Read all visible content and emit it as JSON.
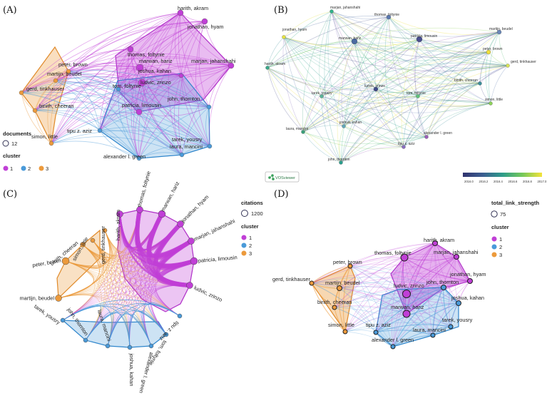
{
  "panels": {
    "a": {
      "label": "(A)",
      "legend": {
        "size_title": "documents",
        "size_value": "12",
        "cluster_title": "cluster",
        "clusters": [
          "1",
          "2",
          "3"
        ]
      }
    },
    "b": {
      "label": "(B)",
      "brand": "VOSviewer",
      "scale_ticks": [
        "2016.0",
        "2016.2",
        "2016.4",
        "2016.6",
        "2016.8",
        "2017.0"
      ]
    },
    "c": {
      "label": "(C)",
      "legend": {
        "size_title": "citations",
        "size_value": "1200",
        "cluster_title": "cluster",
        "clusters": [
          "1",
          "2",
          "3"
        ]
      }
    },
    "d": {
      "label": "(D)",
      "legend": {
        "size_title": "total_link_strength",
        "size_value": "75",
        "cluster_title": "cluster",
        "clusters": [
          "1",
          "2",
          "3"
        ]
      }
    }
  },
  "colors": {
    "cluster1": "#c03fd6",
    "cluster2": "#4a9ad9",
    "cluster3": "#ec9a3c"
  },
  "network": {
    "a": [
      {
        "label": "harith, akram",
        "c": 1
      },
      {
        "label": "jonathan, hyam",
        "c": 1
      },
      {
        "label": "thomas, foltynie",
        "c": 1
      },
      {
        "label": "marwan, hariz",
        "c": 1
      },
      {
        "label": "joshua, kahan",
        "c": 1
      },
      {
        "label": "marjan, jahanshahi",
        "c": 1
      },
      {
        "label": "ludvic, zrinzo",
        "c": 1
      },
      {
        "label": "patricia, limousin",
        "c": 1
      },
      {
        "label": "tom, foltynie",
        "c": 2
      },
      {
        "label": "john, thornton",
        "c": 2
      },
      {
        "label": "tarek, yousry",
        "c": 2
      },
      {
        "label": "laura, mancini",
        "c": 2
      },
      {
        "label": "tipu z. aziz",
        "c": 2
      },
      {
        "label": "alexander l. green",
        "c": 2
      },
      {
        "label": "peter, brown",
        "c": 3
      },
      {
        "label": "martijn, beudel",
        "c": 3
      },
      {
        "label": "gerd, tinkhauser",
        "c": 3
      },
      {
        "label": "binith, cheeran",
        "c": 3
      },
      {
        "label": "simon, little",
        "c": 3
      }
    ],
    "b": [
      {
        "label": "marjan, jahanshahi"
      },
      {
        "label": "thomas, foltynie"
      },
      {
        "label": "jonathan, hyam"
      },
      {
        "label": "marwan, hariz"
      },
      {
        "label": "patricia, limousin"
      },
      {
        "label": "martijn, beudel"
      },
      {
        "label": "peter, brown"
      },
      {
        "label": "gerd, tinkhauser"
      },
      {
        "label": "harith, akram"
      },
      {
        "label": "ludvic, zrinzo"
      },
      {
        "label": "binith, cheeran"
      },
      {
        "label": "tarek, yousry"
      },
      {
        "label": "tom, foltynie"
      },
      {
        "label": "simon, little"
      },
      {
        "label": "joshua, kahan"
      },
      {
        "label": "laura, mancini"
      },
      {
        "label": "alexander l. green"
      },
      {
        "label": "tipu z. aziz"
      },
      {
        "label": "john, thornton"
      }
    ],
    "c": [
      {
        "label": "gerd, tinkhauser",
        "c": 3
      },
      {
        "label": "simon, little",
        "c": 3
      },
      {
        "label": "binith, cheeran",
        "c": 3
      },
      {
        "label": "peter, brown",
        "c": 3
      },
      {
        "label": "martijn, beudel",
        "c": 3
      },
      {
        "label": "harith, akram",
        "c": 1
      },
      {
        "label": "thomas, foltynie",
        "c": 1
      },
      {
        "label": "marwan, hariz",
        "c": 1
      },
      {
        "label": "jonathan, hyam",
        "c": 1
      },
      {
        "label": "marjan, jahanshahi",
        "c": 1
      },
      {
        "label": "patricia, limousin",
        "c": 1
      },
      {
        "label": "ludvic, zrinzo",
        "c": 1
      },
      {
        "label": "tarek, yousry",
        "c": 2
      },
      {
        "label": "john, thornton",
        "c": 2
      },
      {
        "label": "laura, mancini",
        "c": 2
      },
      {
        "label": "joshua, kahan",
        "c": 2
      },
      {
        "label": "alexander l. green",
        "c": 2
      },
      {
        "label": "tom, foltynie",
        "c": 2
      },
      {
        "label": "tipu z. aziz",
        "c": 2
      }
    ],
    "d": [
      {
        "label": "harith, akram",
        "c": 1
      },
      {
        "label": "thomas, foltynie",
        "c": 1
      },
      {
        "label": "marjan, jahanshahi",
        "c": 1
      },
      {
        "label": "jonathan, hyam",
        "c": 1
      },
      {
        "label": "ludvic, zrinzo",
        "c": 1
      },
      {
        "label": "marwan, hariz",
        "c": 1
      },
      {
        "label": "john, thornton",
        "c": 2
      },
      {
        "label": "joshua, kahan",
        "c": 2
      },
      {
        "label": "tarek, yousry",
        "c": 2
      },
      {
        "label": "laura, mancini",
        "c": 2
      },
      {
        "label": "tipu z. aziz",
        "c": 2
      },
      {
        "label": "alexander l. green",
        "c": 2
      },
      {
        "label": "peter, brown",
        "c": 3
      },
      {
        "label": "gerd, tinkhauser",
        "c": 3
      },
      {
        "label": "martijn, beudel",
        "c": 3
      },
      {
        "label": "binith, cheeran",
        "c": 3
      },
      {
        "label": "simon, little",
        "c": 3
      }
    ]
  }
}
